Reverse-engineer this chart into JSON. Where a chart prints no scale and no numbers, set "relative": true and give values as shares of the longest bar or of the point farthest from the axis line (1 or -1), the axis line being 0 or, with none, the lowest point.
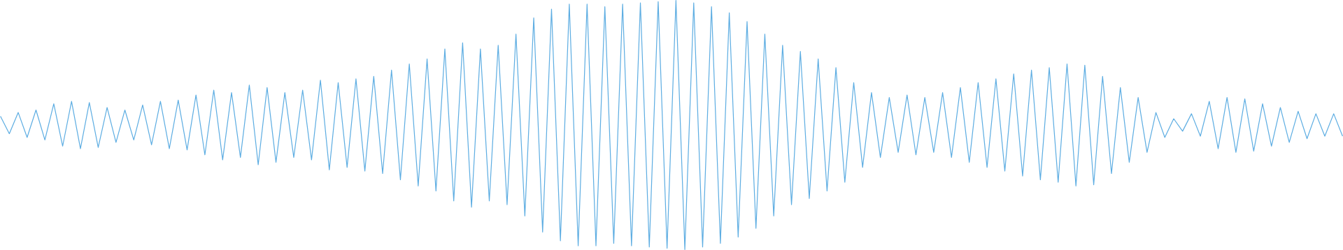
{
  "chart_data": {
    "type": "line",
    "relative": true,
    "categories": [
      null,
      null,
      null,
      null,
      null,
      null,
      null,
      null,
      null,
      null,
      null,
      null,
      null,
      null,
      null,
      null,
      null,
      null,
      null,
      null,
      null,
      null,
      null,
      null,
      null,
      null,
      null,
      null,
      null,
      null,
      null,
      null,
      null,
      null,
      null,
      null,
      null,
      null,
      null,
      null,
      null,
      null,
      null,
      null,
      null,
      null,
      null,
      null,
      null,
      null,
      null,
      null,
      null,
      null,
      null,
      null,
      null,
      null,
      null,
      null,
      null,
      null,
      null,
      null,
      null,
      null,
      null,
      null,
      null,
      null,
      null,
      null,
      null,
      null,
      null,
      null,
      null,
      null,
      null,
      null,
      null,
      null,
      null,
      null,
      null,
      null,
      null,
      null,
      null,
      null,
      null,
      null,
      null,
      null,
      null,
      null,
      null,
      null,
      null,
      null,
      null,
      null,
      null,
      null,
      null,
      null,
      null,
      null,
      null,
      null,
      null,
      null,
      null,
      null,
      null,
      null,
      null,
      null,
      null,
      null,
      null,
      null,
      null,
      null,
      null,
      null,
      null,
      null,
      null,
      null,
      null,
      null,
      null,
      null,
      null,
      null,
      null,
      null,
      null,
      null,
      null,
      null,
      null,
      null,
      null,
      null,
      null,
      null,
      null,
      null,
      null,
      null
    ],
    "series": [
      {
        "color": "#5dade2",
        "values": [
          0.535,
          0.465,
          0.55,
          0.45,
          0.56,
          0.44,
          0.585,
          0.415,
          0.595,
          0.405,
          0.59,
          0.41,
          0.57,
          0.43,
          0.56,
          0.44,
          0.58,
          0.42,
          0.595,
          0.405,
          0.6,
          0.4,
          0.62,
          0.38,
          0.64,
          0.36,
          0.63,
          0.37,
          0.66,
          0.34,
          0.65,
          0.35,
          0.63,
          0.37,
          0.64,
          0.36,
          0.68,
          0.32,
          0.67,
          0.33,
          0.685,
          0.315,
          0.695,
          0.305,
          0.72,
          0.28,
          0.745,
          0.255,
          0.765,
          0.235,
          0.805,
          0.195,
          0.83,
          0.17,
          0.805,
          0.195,
          0.82,
          0.18,
          0.865,
          0.135,
          0.93,
          0.07,
          0.965,
          0.035,
          0.985,
          0.015,
          0.985,
          0.015,
          0.975,
          0.025,
          0.985,
          0.015,
          0.99,
          0.01,
          0.995,
          0.005,
          1,
          0,
          0.99,
          0.01,
          0.975,
          0.025,
          0.95,
          0.05,
          0.915,
          0.085,
          0.865,
          0.135,
          0.82,
          0.18,
          0.795,
          0.205,
          0.765,
          0.235,
          0.73,
          0.27,
          0.67,
          0.33,
          0.63,
          0.37,
          0.61,
          0.39,
          0.62,
          0.38,
          0.61,
          0.39,
          0.63,
          0.37,
          0.65,
          0.35,
          0.67,
          0.33,
          0.685,
          0.315,
          0.705,
          0.295,
          0.72,
          0.28,
          0.73,
          0.27,
          0.745,
          0.255,
          0.74,
          0.26,
          0.695,
          0.305,
          0.65,
          0.35,
          0.61,
          0.39,
          0.55,
          0.45,
          0.525,
          0.475,
          0.545,
          0.455,
          0.595,
          0.405,
          0.61,
          0.39,
          0.605,
          0.395,
          0.585,
          0.415,
          0.57,
          0.43,
          0.555,
          0.445,
          0.545,
          0.455,
          0.545,
          0.455
        ]
      }
    ]
  }
}
